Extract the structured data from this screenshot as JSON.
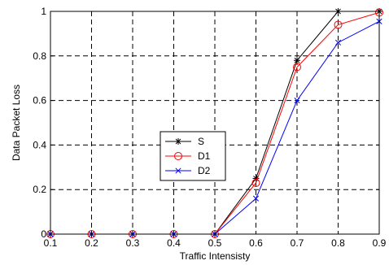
{
  "chart_data": {
    "type": "line",
    "xlabel": "Traffic Intensisty",
    "ylabel": "Data Packet Loss",
    "x": [
      0.1,
      0.2,
      0.3,
      0.4,
      0.5,
      0.6,
      0.7,
      0.8,
      0.9
    ],
    "xticks": [
      "0.1",
      "0.2",
      "0.3",
      "0.4",
      "0.5",
      "0.6",
      "0.7",
      "0.8",
      "0.9"
    ],
    "yticks": [
      "0",
      "0.2",
      "0.4",
      "0.6",
      "0.8",
      "1"
    ],
    "xlim": [
      0.1,
      0.9
    ],
    "ylim": [
      0,
      1
    ],
    "grid": true,
    "legend_position": "center",
    "series": [
      {
        "name": "S",
        "color": "#000000",
        "marker": "star",
        "values": [
          0,
          0,
          0,
          0,
          0,
          0.25,
          0.78,
          1.0,
          1.0
        ]
      },
      {
        "name": "D1",
        "color": "#ff0000",
        "marker": "circle",
        "values": [
          0,
          0,
          0,
          0,
          0,
          0.23,
          0.75,
          0.94,
          0.995
        ]
      },
      {
        "name": "D2",
        "color": "#0000ff",
        "marker": "x",
        "values": [
          0,
          0,
          0,
          0,
          0,
          0.16,
          0.6,
          0.86,
          0.955
        ]
      }
    ]
  }
}
